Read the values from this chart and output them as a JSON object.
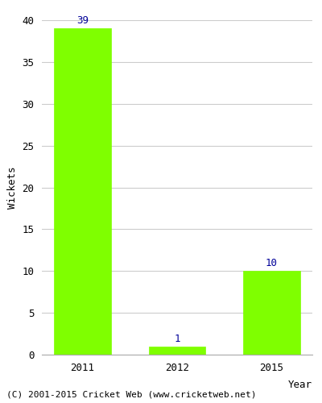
{
  "categories": [
    "2011",
    "2012",
    "2015"
  ],
  "values": [
    39,
    1,
    10
  ],
  "bar_color": "#7FFF00",
  "bar_edge_color": "#7FFF00",
  "ylabel": "Wickets",
  "xlabel": "Year",
  "ylim": [
    0,
    40
  ],
  "yticks": [
    0,
    5,
    10,
    15,
    20,
    25,
    30,
    35,
    40
  ],
  "label_color": "#000099",
  "label_fontsize": 9,
  "tick_fontsize": 9,
  "ylabel_fontsize": 9,
  "grid_color": "#cccccc",
  "background_color": "#ffffff",
  "footer_text": "(C) 2001-2015 Cricket Web (www.cricketweb.net)",
  "footer_fontsize": 8,
  "bar_width": 0.6
}
